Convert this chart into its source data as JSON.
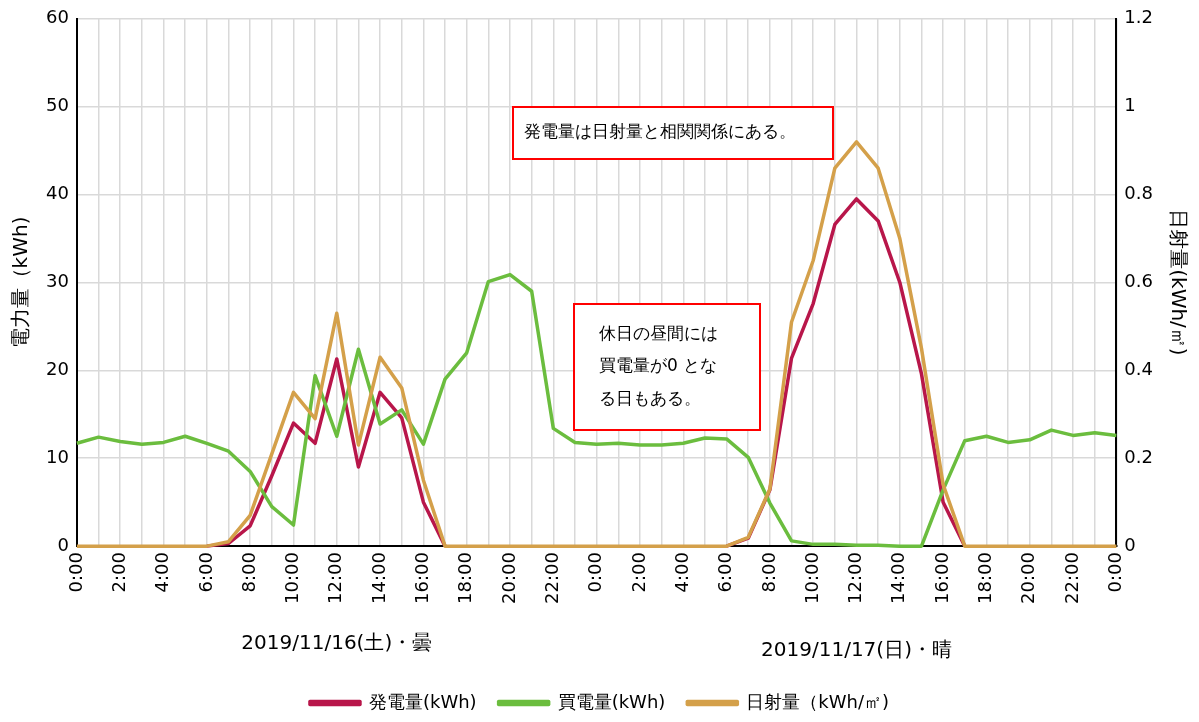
{
  "chart_data": {
    "type": "line",
    "ylabel": "電力量（kWh)",
    "y2label": "日射量(kWh/㎡)",
    "categories": [
      "0:00",
      null,
      "2:00",
      null,
      "4:00",
      null,
      "6:00",
      null,
      "8:00",
      null,
      "10:00",
      null,
      "12:00",
      null,
      "14:00",
      null,
      "16:00",
      null,
      "18:00",
      null,
      "20:00",
      null,
      "22:00",
      null,
      "0:00",
      null,
      "2:00",
      null,
      "4:00",
      null,
      "6:00",
      null,
      "8:00",
      null,
      "10:00",
      null,
      "12:00",
      null,
      "14:00",
      null,
      "16:00",
      null,
      "18:00",
      null,
      "20:00",
      null,
      "22:00",
      null,
      "0:00"
    ],
    "series": [
      {
        "name": "発電量(kWh)",
        "color": "#b8164a",
        "values": [
          null,
          null,
          null,
          null,
          null,
          null,
          0,
          0.3,
          2.3,
          8,
          14,
          11.7,
          21.3,
          9,
          17.5,
          14.6,
          5,
          0,
          null,
          null,
          null,
          null,
          null,
          null,
          null,
          null,
          null,
          null,
          null,
          null,
          0,
          0.9,
          6.4,
          21.4,
          27.6,
          36.6,
          39.5,
          37,
          30,
          19.6,
          5,
          0,
          null,
          null,
          null,
          null,
          null,
          null,
          null
        ]
      },
      {
        "name": "買電量(kWh)",
        "color": "#6bbd3e",
        "values": [
          11.7,
          12.4,
          11.9,
          11.6,
          11.8,
          12.5,
          11.7,
          10.8,
          8.5,
          4.5,
          2.4,
          19.4,
          12.5,
          22.4,
          13.9,
          15.5,
          11.6,
          19,
          22,
          30.1,
          30.9,
          29,
          13.4,
          11.8,
          11.6,
          11.7,
          11.5,
          11.5,
          11.7,
          12.3,
          12.2,
          10.1,
          4.9,
          0.6,
          0.2,
          0.2,
          0.1,
          0.1,
          0,
          0,
          6.4,
          12,
          12.5,
          11.8,
          12.1,
          13.2,
          12.6,
          12.9,
          12.6
        ]
      },
      {
        "name": "日射量（kWh/㎡)",
        "color": "#d4a04a",
        "axis": "y2",
        "values": [
          0,
          0,
          0,
          0,
          0,
          0,
          0,
          0.01,
          0.07,
          0.21,
          0.35,
          0.29,
          0.53,
          0.23,
          0.43,
          0.36,
          0.15,
          0,
          0,
          0,
          0,
          0,
          0,
          0,
          0,
          0,
          0,
          0,
          0,
          0,
          0,
          0.02,
          0.13,
          0.51,
          0.65,
          0.86,
          0.92,
          0.86,
          0.7,
          0.45,
          0.14,
          0,
          0,
          0,
          0,
          0,
          0,
          0,
          0
        ]
      }
    ],
    "ylim": [
      0,
      60
    ],
    "yticks": [
      0,
      10,
      20,
      30,
      40,
      50,
      60
    ],
    "y2lim": [
      0,
      1.2
    ],
    "y2ticks": [
      0,
      0.2,
      0.4,
      0.6,
      0.8,
      1,
      1.2
    ],
    "grid": true,
    "legend": "bottom",
    "marker": "none",
    "line_style": "solid",
    "annotations": [
      "発電量は日射量と相関関係にある。",
      "休日の昼間には買電量が0 となる日もある。",
      "2019/11/16(土)・曇",
      "2019/11/17(日)・晴"
    ]
  }
}
